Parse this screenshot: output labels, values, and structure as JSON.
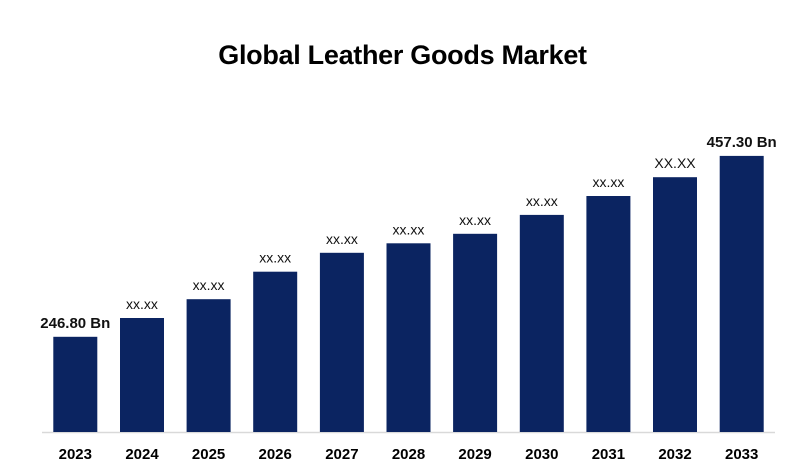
{
  "chart_data": {
    "type": "bar",
    "title": "Global Leather Goods Market",
    "categories": [
      "2023",
      "2024",
      "2025",
      "2026",
      "2027",
      "2028",
      "2029",
      "2030",
      "2031",
      "2032",
      "2033"
    ],
    "values": [
      246.8,
      268.7,
      290.6,
      322.5,
      344.5,
      355.6,
      366.6,
      388.6,
      410.6,
      432.5,
      457.3
    ],
    "data_labels": [
      "246.80 Bn",
      "xx.xx",
      "xx.xx",
      "xx.xx",
      "xx.xx",
      "xx.xx",
      "xx.xx",
      "xx.xx",
      "xx.xx",
      "XX.XX",
      "457.30 Bn"
    ],
    "xlabel": "",
    "ylabel": "",
    "ylim": [
      136,
      470
    ],
    "grid": false,
    "legend": "none",
    "bar_color": "#0b2461"
  }
}
